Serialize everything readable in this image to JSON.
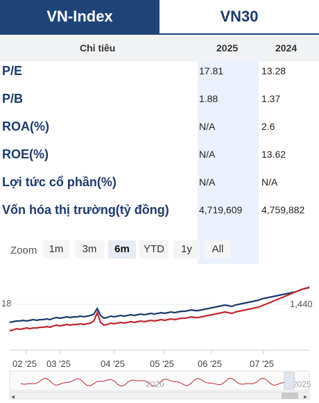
{
  "tabs": [
    {
      "label": "VN-Index"
    },
    {
      "label": "VN30"
    }
  ],
  "table": {
    "headers": {
      "metric": "Chỉ tiêu",
      "col1": "2025",
      "col2": "2024"
    },
    "rows": [
      {
        "label": "P/E",
        "v2025": "17.81",
        "v2024": "13.28"
      },
      {
        "label": "P/B",
        "v2025": "1.88",
        "v2024": "1.37"
      },
      {
        "label": "ROA(%)",
        "v2025": "N/A",
        "v2024": "2.6"
      },
      {
        "label": "ROE(%)",
        "v2025": "N/A",
        "v2024": "13.62"
      },
      {
        "label": "Lợi tức cổ phần(%)",
        "v2025": "N/A",
        "v2024": "N/A"
      },
      {
        "label": "Vốn hóa thị trường(tỷ đồng)",
        "v2025": "4,719,609",
        "v2024": "4,759,882"
      }
    ]
  },
  "zoom": {
    "label": "Zoom",
    "buttons": [
      "1m",
      "3m",
      "6m",
      "YTD",
      "1y",
      "All"
    ],
    "selected": "6m"
  },
  "chart_data": {
    "type": "line",
    "x_ticks": [
      "02 '25",
      "03 '25",
      "04 '25",
      "05 '25",
      "06 '25",
      "07 '25"
    ],
    "y_ticks_left": [
      "18"
    ],
    "y_ticks_right": [
      "1,440"
    ],
    "navigator_labels": [
      "2020",
      "2025"
    ],
    "series": [
      {
        "color": "#1d3a6e",
        "values": [
          64,
          63,
          62,
          62,
          61,
          62,
          61,
          60,
          61,
          60,
          60,
          59,
          60,
          58,
          57,
          58,
          57,
          56,
          57,
          56,
          56,
          55,
          56,
          55,
          54,
          52,
          44,
          54,
          58,
          57,
          55,
          56,
          55,
          54,
          55,
          54,
          53,
          54,
          53,
          52,
          53,
          52,
          51,
          52,
          51,
          50,
          51,
          50,
          49,
          50,
          49,
          48,
          48,
          47,
          46,
          47,
          47,
          46,
          45,
          44,
          43,
          42,
          41,
          40,
          39,
          40,
          41,
          39,
          38,
          37,
          36,
          35,
          34,
          33,
          32,
          30,
          29,
          28,
          27,
          26,
          25,
          24,
          23,
          22,
          21,
          20,
          18,
          16,
          15,
          14
        ]
      },
      {
        "color": "#c0282e",
        "values": [
          76,
          75,
          73,
          74,
          73,
          72,
          73,
          72,
          72,
          71,
          71,
          70,
          71,
          69,
          68,
          69,
          68,
          67,
          68,
          67,
          67,
          66,
          67,
          66,
          65,
          62,
          50,
          64,
          68,
          67,
          65,
          66,
          65,
          64,
          65,
          64,
          63,
          64,
          63,
          62,
          63,
          62,
          61,
          62,
          61,
          60,
          61,
          60,
          59,
          60,
          59,
          58,
          58,
          57,
          56,
          57,
          57,
          56,
          55,
          54,
          53,
          52,
          51,
          50,
          49,
          50,
          51,
          49,
          48,
          47,
          46,
          45,
          44,
          43,
          42,
          40,
          38,
          36,
          34,
          32,
          30,
          28,
          26,
          24,
          22,
          20,
          18,
          16,
          15,
          13
        ]
      }
    ],
    "colors": {
      "primary": "#1e4478",
      "accent": "#c0282e"
    }
  }
}
